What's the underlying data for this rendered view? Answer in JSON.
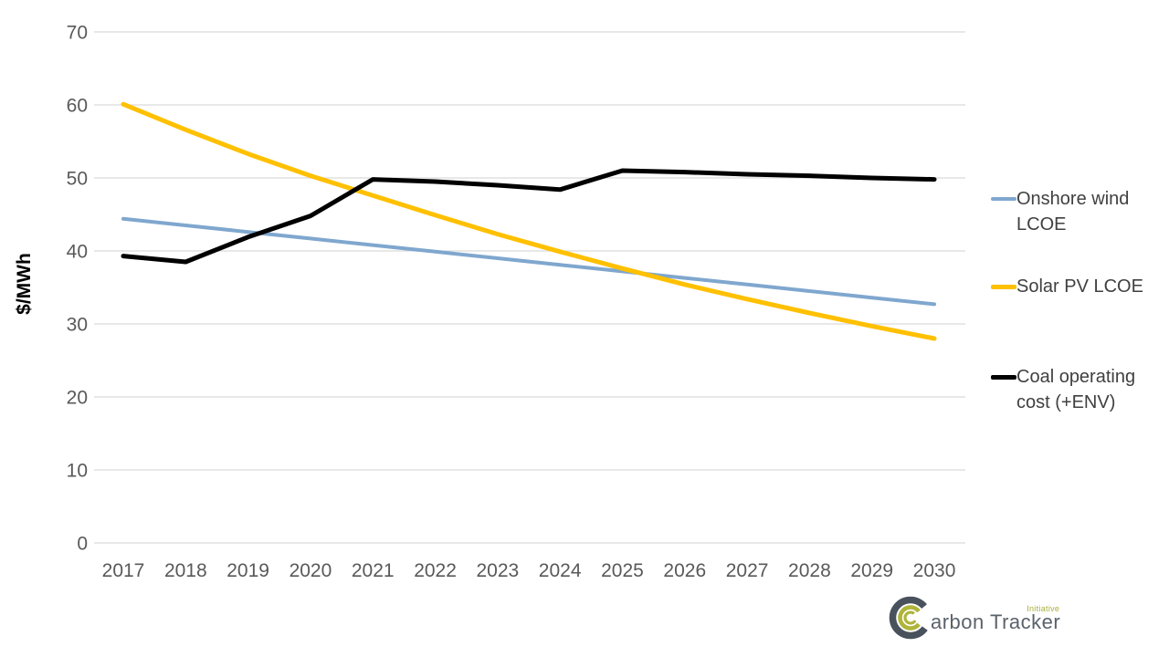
{
  "chart_data": {
    "type": "line",
    "title": "",
    "xlabel": "",
    "ylabel": "$/MWh",
    "x": [
      2017,
      2018,
      2019,
      2020,
      2021,
      2022,
      2023,
      2024,
      2025,
      2026,
      2027,
      2028,
      2029,
      2030
    ],
    "ylim": [
      0,
      70
    ],
    "ytick_step": 10,
    "grid": "horizontal",
    "legend_position": "right",
    "series": [
      {
        "name": "Onshore wind LCOE",
        "color": "#7FA7CE",
        "line_width": 4,
        "values": [
          44.4,
          43.5,
          42.6,
          41.7,
          40.8,
          39.9,
          39.0,
          38.1,
          37.2,
          36.3,
          35.4,
          34.5,
          33.6,
          32.7
        ]
      },
      {
        "name": "Solar PV LCOE",
        "color": "#FFC000",
        "line_width": 5,
        "values": [
          60.1,
          56.6,
          53.3,
          50.3,
          47.6,
          44.9,
          42.3,
          39.9,
          37.6,
          35.4,
          33.4,
          31.5,
          29.7,
          28.0
        ]
      },
      {
        "name": "Coal operating cost (+ENV)",
        "color": "#000000",
        "line_width": 5,
        "values": [
          39.3,
          38.5,
          41.9,
          44.8,
          49.8,
          49.5,
          49.0,
          48.4,
          51.0,
          50.8,
          50.5,
          50.3,
          50.0,
          49.8
        ]
      }
    ],
    "colors": {
      "grid": "#D9D9D9",
      "tick_label": "#595959",
      "legend_text": "#404040",
      "axis_title": "#000000"
    }
  },
  "logo": {
    "name": "Carbon Tracker",
    "wordmark_rest": "arbon Tracker",
    "tagline": "Initiative",
    "mark_dark_color": "#49525C",
    "mark_olive_color": "#AFB43B",
    "text_color": "#5A626B",
    "tagline_color": "#A9AE3B"
  }
}
